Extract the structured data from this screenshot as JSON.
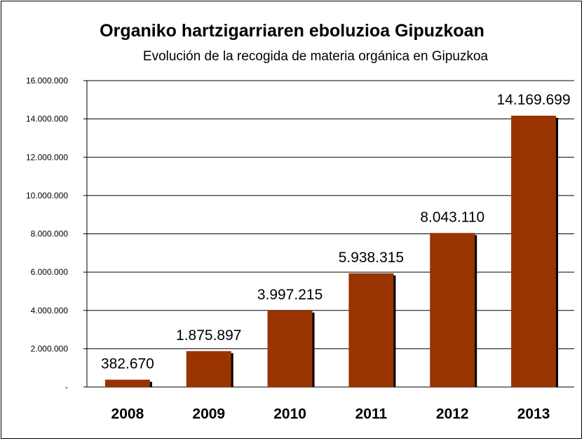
{
  "chart_data": {
    "type": "bar",
    "title": "Organiko hartzigarriaren eboluzioa Gipuzkoan",
    "subtitle": "Evolución de la recogida de materia orgánica en Gipuzkoa",
    "xlabel": "",
    "ylabel": "",
    "categories": [
      "2008",
      "2009",
      "2010",
      "2011",
      "2012",
      "2013"
    ],
    "values": [
      382670,
      1875897,
      3997215,
      5938315,
      8043110,
      14169699
    ],
    "data_labels": [
      "382.670",
      "1.875.897",
      "3.997.215",
      "5.938.315",
      "8.043.110",
      "14.169.699"
    ],
    "ylim": [
      0,
      16000000
    ],
    "yticks": [
      0,
      2000000,
      4000000,
      6000000,
      8000000,
      10000000,
      12000000,
      14000000,
      16000000
    ],
    "ytick_labels": [
      "-",
      "2.000.000",
      "4.000.000",
      "6.000.000",
      "8.000.000",
      "10.000.000",
      "12.000.000",
      "14.000.000",
      "16.000.000"
    ],
    "grid": true,
    "legend": "none",
    "colors": {
      "bar": "#993300",
      "bar_shadow": "#000000",
      "grid": "#000000",
      "background": "#ffffff"
    }
  }
}
